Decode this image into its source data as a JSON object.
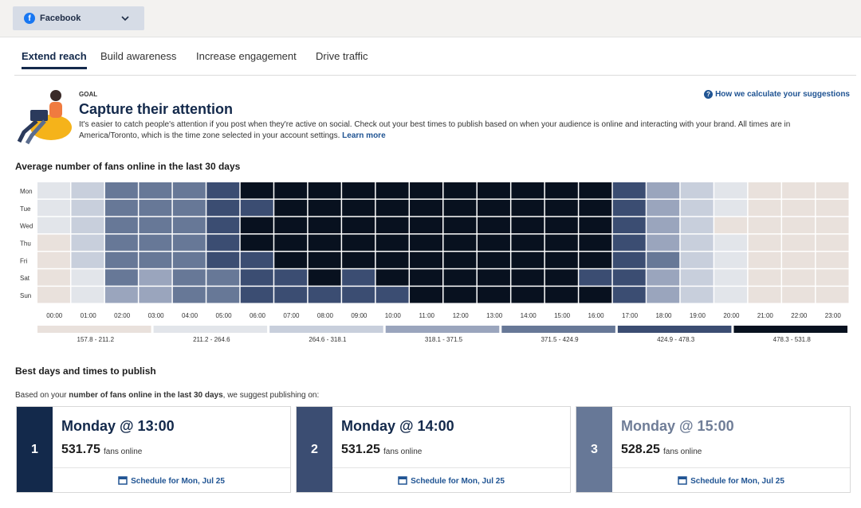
{
  "account": {
    "name": "Facebook"
  },
  "tabs": [
    "Extend reach",
    "Build awareness",
    "Increase engagement",
    "Drive traffic"
  ],
  "goal": {
    "label": "GOAL",
    "title": "Capture their attention",
    "description": "It's easier to catch people's attention if you post when they're active on social. Check out your best times to publish based on when your audience is online and interacting with your brand. All times are in America/Toronto, which is the time zone selected in your account settings.",
    "link": "Learn more",
    "help": "How we calculate your suggestions"
  },
  "heatmap": {
    "title": "Average number of fans online in the last 30 days",
    "days": [
      "Mon",
      "Tue",
      "Wed",
      "Thu",
      "Fri",
      "Sat",
      "Sun"
    ],
    "hours": [
      "00:00",
      "01:00",
      "02:00",
      "03:00",
      "04:00",
      "05:00",
      "06:00",
      "07:00",
      "08:00",
      "09:00",
      "10:00",
      "11:00",
      "12:00",
      "13:00",
      "14:00",
      "15:00",
      "16:00",
      "17:00",
      "18:00",
      "19:00",
      "20:00",
      "21:00",
      "22:00",
      "23:00"
    ],
    "legend": {
      "labels": [
        "157.8 - 211.2",
        "211.2 - 264.6",
        "264.6 - 318.1",
        "318.1 - 371.5",
        "371.5 - 424.9",
        "424.9 - 478.3",
        "478.3 - 531.8"
      ],
      "colors": [
        "#e9e1dc",
        "#e2e5ea",
        "#c8cfdc",
        "#9aa5bd",
        "#677897",
        "#3b4d72",
        "#08111f"
      ]
    },
    "levels": [
      [
        1,
        2,
        4,
        4,
        4,
        5,
        6,
        6,
        6,
        6,
        6,
        6,
        6,
        6,
        6,
        6,
        6,
        5,
        3,
        2,
        1,
        0,
        0,
        0
      ],
      [
        1,
        2,
        4,
        4,
        4,
        5,
        5,
        6,
        6,
        6,
        6,
        6,
        6,
        6,
        6,
        6,
        6,
        5,
        3,
        2,
        1,
        0,
        0,
        0
      ],
      [
        1,
        2,
        4,
        4,
        4,
        5,
        6,
        6,
        6,
        6,
        6,
        6,
        6,
        6,
        6,
        6,
        6,
        5,
        3,
        2,
        0,
        0,
        0,
        0
      ],
      [
        0,
        2,
        4,
        4,
        4,
        5,
        6,
        6,
        6,
        6,
        6,
        6,
        6,
        6,
        6,
        6,
        6,
        5,
        3,
        2,
        1,
        0,
        0,
        0
      ],
      [
        0,
        2,
        4,
        4,
        4,
        5,
        5,
        6,
        6,
        6,
        6,
        6,
        6,
        6,
        6,
        6,
        6,
        5,
        4,
        2,
        1,
        0,
        0,
        0
      ],
      [
        0,
        1,
        4,
        3,
        4,
        4,
        5,
        5,
        6,
        5,
        6,
        6,
        6,
        6,
        6,
        6,
        5,
        5,
        3,
        2,
        1,
        0,
        0,
        0
      ],
      [
        0,
        1,
        3,
        3,
        4,
        4,
        5,
        5,
        5,
        5,
        5,
        6,
        6,
        6,
        6,
        6,
        6,
        5,
        3,
        2,
        1,
        0,
        0,
        0
      ]
    ]
  },
  "best": {
    "title": "Best days and times to publish",
    "intro_prefix": "Based on your ",
    "intro_bold": "number of fans online in the last 30 days",
    "intro_suffix": ", we suggest publishing on:",
    "cards": [
      {
        "rank": 1,
        "time": "Monday @ 13:00",
        "value": 531.75,
        "unit": "fans online",
        "action": "Schedule for Mon, Jul 25",
        "color": "#13294b",
        "title_color": "#13294b"
      },
      {
        "rank": 2,
        "time": "Monday @ 14:00",
        "value": 531.25,
        "unit": "fans online",
        "action": "Schedule for Mon, Jul 25",
        "color": "#3b4d72",
        "title_color": "#13294b"
      },
      {
        "rank": 3,
        "time": "Monday @ 15:00",
        "value": 528.25,
        "unit": "fans online",
        "action": "Schedule for Mon, Jul 25",
        "color": "#677897",
        "title_color": "#6f7d97"
      }
    ]
  }
}
